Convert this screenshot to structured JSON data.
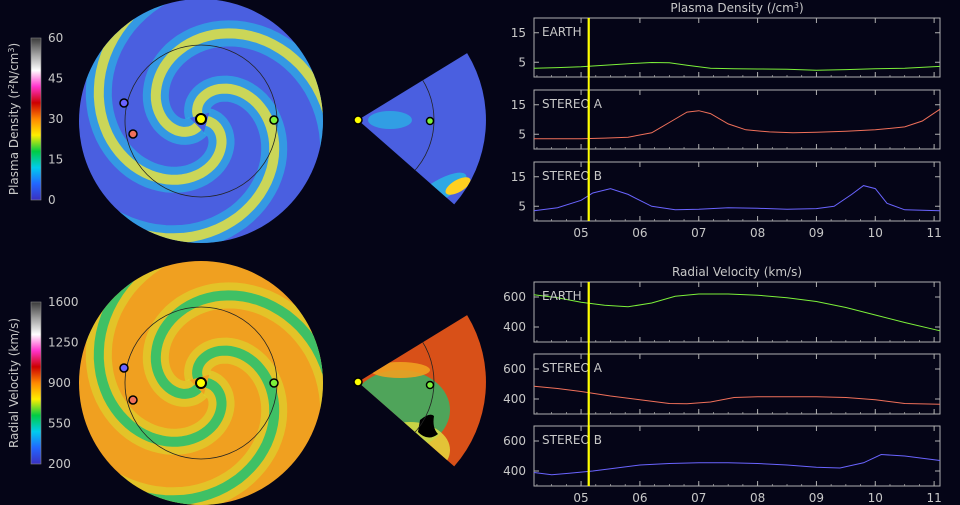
{
  "colors": {
    "background": "#050517",
    "earth": "#7cf03a",
    "stereo_a": "#f0705a",
    "stereo_b": "#6a64ff",
    "time_marker": "#ffff00",
    "axes": "#b0b0b0",
    "text": "#c8c8c8"
  },
  "colorbars": [
    {
      "label_parts": [
        "Plasma Density (r",
        "2",
        "N/cm",
        "3",
        ")"
      ],
      "ticks": [
        "60",
        "45",
        "30",
        "15",
        "0"
      ],
      "colors": [
        "#3a3a3a",
        "#a0a0a0",
        "#ffffff",
        "#ff33cc",
        "#cc0000",
        "#ff8800",
        "#ffee00",
        "#00cc44",
        "#00ccee",
        "#2266ff",
        "#3a30c0"
      ]
    },
    {
      "label_parts": [
        "Radial Velocity (km/s)"
      ],
      "ticks": [
        "1600",
        "1250",
        "900",
        "550",
        "200"
      ],
      "colors": [
        "#3a3a3a",
        "#a0a0a0",
        "#ffffff",
        "#ff33cc",
        "#cc0000",
        "#ff8800",
        "#ffee00",
        "#00cc44",
        "#00ccee",
        "#2266ff",
        "#3a30c0"
      ]
    }
  ],
  "maps": [
    {
      "panel": "density-polar",
      "background_color": "#4a5fe0",
      "arm_color": "#e6e040",
      "arm2_color": "#22c8e6",
      "sun": "sun",
      "bodies": [
        "Earth",
        "STEREO A",
        "STEREO B"
      ]
    },
    {
      "panel": "velocity-polar",
      "background_color": "#f0a020",
      "arm_color": "#22c070",
      "arm2_color": "#d8e030",
      "sun": "sun",
      "bodies": [
        "Earth",
        "STEREO A",
        "STEREO B"
      ]
    }
  ],
  "chart_data": [
    {
      "type": "line",
      "title_parts": [
        "Plasma Density (/cm",
        "3",
        ")"
      ],
      "x_ticks": [
        "05",
        "06",
        "07",
        "08",
        "09",
        "10",
        "11"
      ],
      "x_range": [
        4.2,
        11.1
      ],
      "current_time": 5.13,
      "panels": [
        {
          "label": "EARTH",
          "color": "#7cf03a",
          "ylim": [
            0,
            20
          ],
          "yticks": [
            "15",
            "5"
          ],
          "ytick_values": [
            15,
            5
          ],
          "x": [
            4.2,
            4.6,
            5.0,
            5.4,
            5.8,
            6.2,
            6.5,
            6.8,
            7.2,
            7.6,
            8.0,
            8.5,
            9.0,
            9.5,
            10.0,
            10.5,
            11.1
          ],
          "y": [
            3.0,
            3.2,
            3.5,
            4.0,
            4.5,
            4.9,
            4.8,
            4.0,
            3.0,
            2.8,
            2.7,
            2.6,
            2.3,
            2.5,
            2.8,
            3.0,
            3.6
          ]
        },
        {
          "label": "STEREO A",
          "color": "#f0705a",
          "ylim": [
            0,
            20
          ],
          "yticks": [
            "15",
            "5"
          ],
          "ytick_values": [
            15,
            5
          ],
          "x": [
            4.2,
            4.6,
            5.0,
            5.4,
            5.8,
            6.2,
            6.5,
            6.8,
            7.0,
            7.2,
            7.5,
            7.8,
            8.2,
            8.6,
            9.0,
            9.5,
            10.0,
            10.5,
            10.8,
            11.1
          ],
          "y": [
            3.5,
            3.5,
            3.5,
            3.7,
            4.0,
            5.5,
            9.0,
            12.5,
            13.0,
            12.0,
            8.5,
            6.5,
            5.8,
            5.5,
            5.7,
            6.0,
            6.5,
            7.5,
            9.5,
            13.5
          ]
        },
        {
          "label": "STEREO B",
          "color": "#6a64ff",
          "ylim": [
            0,
            20
          ],
          "yticks": [
            "15",
            "5"
          ],
          "ytick_values": [
            15,
            5
          ],
          "x": [
            4.2,
            4.6,
            5.0,
            5.2,
            5.5,
            5.8,
            6.2,
            6.6,
            7.0,
            7.5,
            8.0,
            8.5,
            9.0,
            9.3,
            9.6,
            9.8,
            10.0,
            10.2,
            10.5,
            11.1
          ],
          "y": [
            3.5,
            4.5,
            7.0,
            9.5,
            11.0,
            9.0,
            5.0,
            3.8,
            4.0,
            4.5,
            4.3,
            4.0,
            4.2,
            5.0,
            9.0,
            12.0,
            11.0,
            6.0,
            3.8,
            3.5
          ]
        }
      ]
    },
    {
      "type": "line",
      "title_parts": [
        "Radial Velocity (km/s)"
      ],
      "x_ticks": [
        "05",
        "06",
        "07",
        "08",
        "09",
        "10",
        "11"
      ],
      "x_range": [
        4.2,
        11.1
      ],
      "current_time": 5.13,
      "panels": [
        {
          "label": "EARTH",
          "color": "#7cf03a",
          "ylim": [
            300,
            700
          ],
          "yticks": [
            "600",
            "400"
          ],
          "ytick_values": [
            600,
            400
          ],
          "x": [
            4.2,
            4.6,
            5.0,
            5.4,
            5.8,
            6.2,
            6.6,
            7.0,
            7.5,
            8.0,
            8.5,
            9.0,
            9.5,
            10.0,
            10.5,
            11.1
          ],
          "y": [
            615,
            595,
            565,
            545,
            535,
            560,
            605,
            620,
            620,
            612,
            595,
            570,
            530,
            480,
            430,
            375
          ]
        },
        {
          "label": "STEREO A",
          "color": "#f0705a",
          "ylim": [
            300,
            700
          ],
          "yticks": [
            "600",
            "400"
          ],
          "ytick_values": [
            600,
            400
          ],
          "x": [
            4.2,
            4.6,
            5.0,
            5.5,
            6.0,
            6.5,
            6.8,
            7.2,
            7.6,
            8.0,
            8.5,
            9.0,
            9.5,
            10.0,
            10.5,
            11.1
          ],
          "y": [
            485,
            470,
            450,
            420,
            395,
            370,
            368,
            380,
            410,
            415,
            415,
            415,
            410,
            395,
            370,
            365
          ]
        },
        {
          "label": "STEREO B",
          "color": "#6a64ff",
          "ylim": [
            300,
            700
          ],
          "yticks": [
            "600",
            "400"
          ],
          "ytick_values": [
            600,
            400
          ],
          "x": [
            4.2,
            4.5,
            4.8,
            5.2,
            5.6,
            6.0,
            6.5,
            7.0,
            7.5,
            8.0,
            8.5,
            9.0,
            9.4,
            9.8,
            10.1,
            10.5,
            11.1
          ],
          "y": [
            390,
            375,
            385,
            400,
            420,
            440,
            450,
            455,
            455,
            450,
            440,
            425,
            420,
            455,
            510,
            500,
            470
          ]
        }
      ]
    }
  ]
}
